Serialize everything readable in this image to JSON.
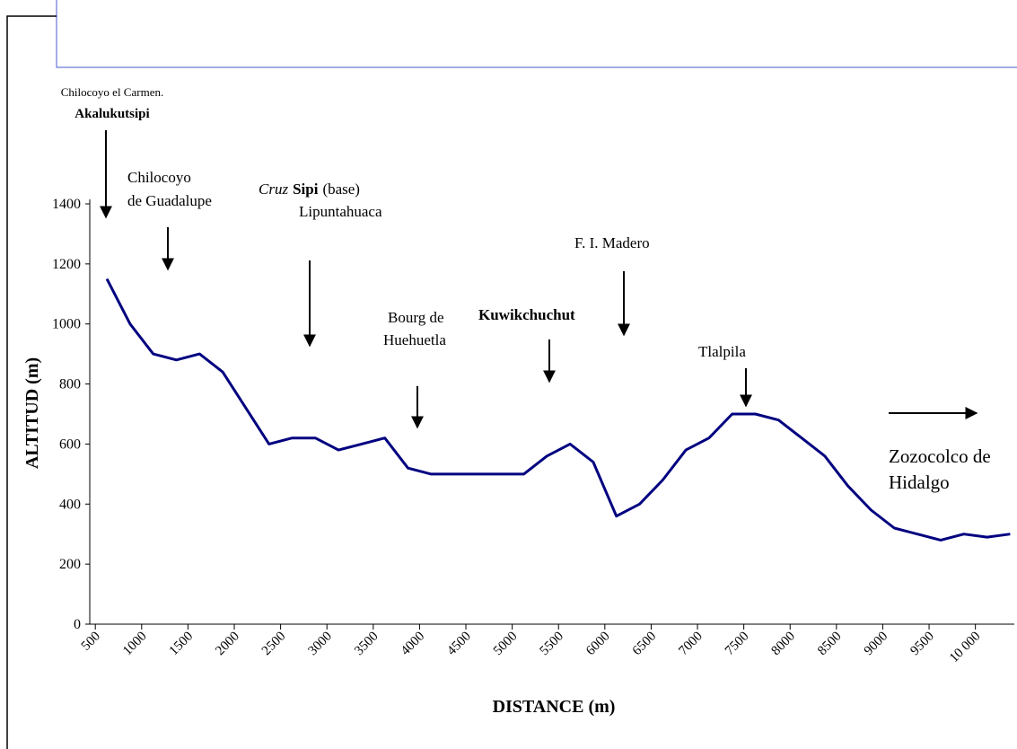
{
  "chart_data": {
    "type": "line",
    "xlabel": "DISTANCE (m)",
    "ylabel": "ALTITUD (m)",
    "x": [
      625,
      875,
      1125,
      1375,
      1625,
      1875,
      2125,
      2375,
      2625,
      2875,
      3125,
      3375,
      3625,
      3875,
      4125,
      4375,
      4625,
      4875,
      5125,
      5375,
      5625,
      5875,
      6125,
      6375,
      6625,
      6875,
      7125,
      7375,
      7625,
      7875,
      8125,
      8375,
      8625,
      8875,
      9125,
      9375,
      9625,
      9875,
      10125,
      10375
    ],
    "series": [
      {
        "color": "#000080",
        "values": [
          1150,
          1000,
          900,
          880,
          900,
          840,
          720,
          600,
          620,
          620,
          580,
          600,
          620,
          520,
          500,
          500,
          500,
          500,
          500,
          560,
          600,
          540,
          360,
          400,
          480,
          580,
          620,
          700,
          700,
          680,
          620,
          560,
          460,
          380,
          320,
          300,
          280,
          300,
          290,
          300
        ]
      }
    ],
    "xlim": [
      440,
      10420
    ],
    "ylim": [
      0,
      1400
    ],
    "xticks": [
      500,
      1000,
      1500,
      2000,
      2500,
      3000,
      3500,
      4000,
      4500,
      5000,
      5500,
      6000,
      6500,
      7000,
      7500,
      8000,
      8500,
      9000,
      9500,
      {
        "value": 10000,
        "label": "10 000"
      }
    ],
    "yticks": [
      0,
      200,
      400,
      600,
      800,
      1000,
      1200,
      1400
    ],
    "annotations": [
      {
        "lines": [
          [
            {
              "text": "Chilocoyo el Carmen.",
              "style": "normal"
            }
          ],
          [
            {
              "text": "Akalukutsipi",
              "style": "bold"
            }
          ]
        ]
      },
      {
        "lines": [
          [
            {
              "text": "Chilocoyo",
              "style": "normal"
            }
          ],
          [
            {
              "text": "de Guadalupe",
              "style": "normal"
            }
          ]
        ]
      },
      {
        "lines": [
          [
            {
              "text": "Cruz",
              "style": "italic"
            },
            {
              "text": "Sipi",
              "style": "bold"
            },
            {
              "text": "(base)",
              "style": "normal"
            }
          ],
          [
            {
              "text": "Lipuntahuaca",
              "style": "normal"
            }
          ]
        ]
      },
      {
        "lines": [
          [
            {
              "text": "F. I. Madero",
              "style": "normal"
            }
          ]
        ]
      },
      {
        "lines": [
          [
            {
              "text": "Bourg de",
              "style": "normal"
            }
          ],
          [
            {
              "text": "Huehuetla",
              "style": "normal"
            }
          ]
        ]
      },
      {
        "lines": [
          [
            {
              "text": "Kuwikchuchut",
              "style": "bold"
            }
          ]
        ]
      },
      {
        "lines": [
          [
            {
              "text": "Tlalpila",
              "style": "normal"
            }
          ]
        ]
      },
      {
        "lines": [
          [
            {
              "text": "Zozocolco de",
              "style": "normal"
            }
          ],
          [
            {
              "text": "Hidalgo",
              "style": "normal"
            }
          ]
        ]
      }
    ]
  }
}
